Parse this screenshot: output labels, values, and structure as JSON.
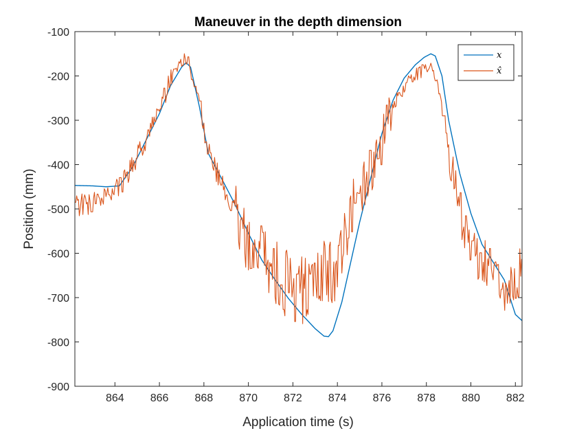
{
  "chart_data": {
    "type": "line",
    "title": "Maneuver in the depth dimension",
    "xlabel": "Application time (s)",
    "ylabel": "Position (mm)",
    "xlim": [
      862.2,
      882.3
    ],
    "ylim": [
      -900,
      -100
    ],
    "xticks": [
      864,
      866,
      868,
      870,
      872,
      874,
      876,
      878,
      880,
      882
    ],
    "yticks": [
      -100,
      -200,
      -300,
      -400,
      -500,
      -600,
      -700,
      -800,
      -900
    ],
    "grid": false,
    "box": true,
    "legend": {
      "location": "top-right",
      "entries": [
        "x",
        "x̂"
      ]
    },
    "series": [
      {
        "name": "x",
        "color": "#0072BD",
        "noisy": false,
        "x": [
          862.2,
          863.0,
          863.6,
          864.2,
          864.8,
          865.4,
          866.0,
          866.5,
          867.0,
          867.2,
          867.4,
          867.8,
          868.2,
          868.8,
          869.4,
          870.0,
          870.6,
          871.2,
          871.8,
          872.4,
          873.0,
          873.4,
          873.6,
          873.8,
          874.2,
          874.6,
          875.0,
          875.5,
          876.0,
          876.5,
          877.0,
          877.5,
          877.9,
          878.2,
          878.4,
          878.7,
          879.0,
          879.5,
          880.0,
          880.5,
          881.0,
          881.5,
          882.0,
          882.3
        ],
        "y": [
          -447,
          -448,
          -450,
          -448,
          -405,
          -345,
          -285,
          -222,
          -180,
          -170,
          -180,
          -270,
          -375,
          -432,
          -490,
          -555,
          -615,
          -660,
          -702,
          -738,
          -770,
          -787,
          -788,
          -775,
          -710,
          -620,
          -530,
          -430,
          -330,
          -255,
          -205,
          -175,
          -158,
          -150,
          -155,
          -200,
          -300,
          -420,
          -510,
          -580,
          -620,
          -660,
          -738,
          -752
        ]
      },
      {
        "name": "x̂",
        "color": "#D95319",
        "noisy": true,
        "x": [
          862.2,
          863.0,
          863.7,
          864.3,
          864.9,
          865.5,
          866.0,
          866.5,
          867.0,
          867.3,
          867.6,
          868.0,
          868.4,
          868.8,
          869.4,
          870.0,
          870.6,
          871.2,
          871.8,
          872.4,
          872.8,
          873.2,
          873.6,
          874.0,
          874.4,
          874.8,
          875.3,
          875.8,
          876.3,
          876.8,
          877.3,
          877.8,
          878.2,
          878.5,
          878.8,
          879.2,
          879.6,
          880.0,
          880.4,
          880.8,
          881.2,
          881.6,
          882.0,
          882.3
        ],
        "y": [
          -492,
          -488,
          -470,
          -448,
          -395,
          -330,
          -268,
          -212,
          -172,
          -170,
          -220,
          -330,
          -400,
          -440,
          -505,
          -565,
          -605,
          -650,
          -670,
          -680,
          -682,
          -665,
          -640,
          -625,
          -560,
          -490,
          -435,
          -372,
          -305,
          -238,
          -208,
          -185,
          -180,
          -215,
          -300,
          -415,
          -520,
          -592,
          -610,
          -628,
          -660,
          -680,
          -670,
          -620
        ],
        "noise_amplitude_mm": 35,
        "end_value": -625
      }
    ]
  }
}
